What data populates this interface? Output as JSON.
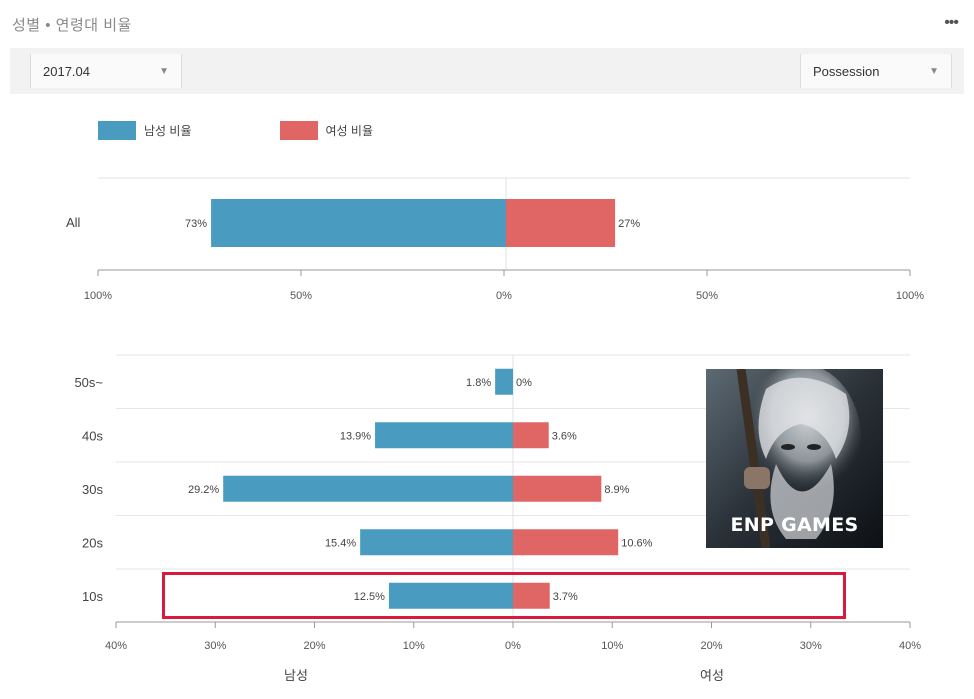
{
  "header": {
    "title": "성별 • 연령대 비율",
    "more_icon": "more-icon"
  },
  "filters": {
    "period": "2017.04",
    "metric": "Possession"
  },
  "legend": {
    "male_label": "남성 비율",
    "female_label": "여성 비율"
  },
  "colors": {
    "male": "#4a9bc0",
    "female": "#e06666",
    "highlight": "#d81b3c"
  },
  "logo": {
    "text": "ENP GAMES"
  },
  "chart_data": [
    {
      "type": "bar",
      "orientation": "horizontal-diverging",
      "categories": [
        "All"
      ],
      "series": [
        {
          "name": "남성 비율",
          "values": [
            73
          ]
        },
        {
          "name": "여성 비율",
          "values": [
            27
          ]
        }
      ],
      "value_labels": {
        "male": [
          "73%"
        ],
        "female": [
          "27%"
        ]
      },
      "xlim": [
        -100,
        100
      ],
      "xticks": [
        "100%",
        "50%",
        "0%",
        "50%",
        "100%"
      ],
      "grid": true
    },
    {
      "type": "bar",
      "orientation": "horizontal-diverging",
      "categories": [
        "50s~",
        "40s",
        "30s",
        "20s",
        "10s"
      ],
      "series": [
        {
          "name": "남성 비율",
          "values": [
            1.8,
            13.9,
            29.2,
            15.4,
            12.5
          ]
        },
        {
          "name": "여성 비율",
          "values": [
            0,
            3.6,
            8.9,
            10.6,
            3.7
          ]
        }
      ],
      "value_labels": {
        "male": [
          "1.8%",
          "13.9%",
          "29.2%",
          "15.4%",
          "12.5%"
        ],
        "female": [
          "0%",
          "3.6%",
          "8.9%",
          "10.6%",
          "3.7%"
        ]
      },
      "xlim": [
        -40,
        40
      ],
      "xticks": [
        "40%",
        "30%",
        "20%",
        "10%",
        "0%",
        "10%",
        "20%",
        "30%",
        "40%"
      ],
      "xlabel_left": "남성",
      "xlabel_right": "여성",
      "highlighted_category": "10s",
      "grid": true
    }
  ]
}
